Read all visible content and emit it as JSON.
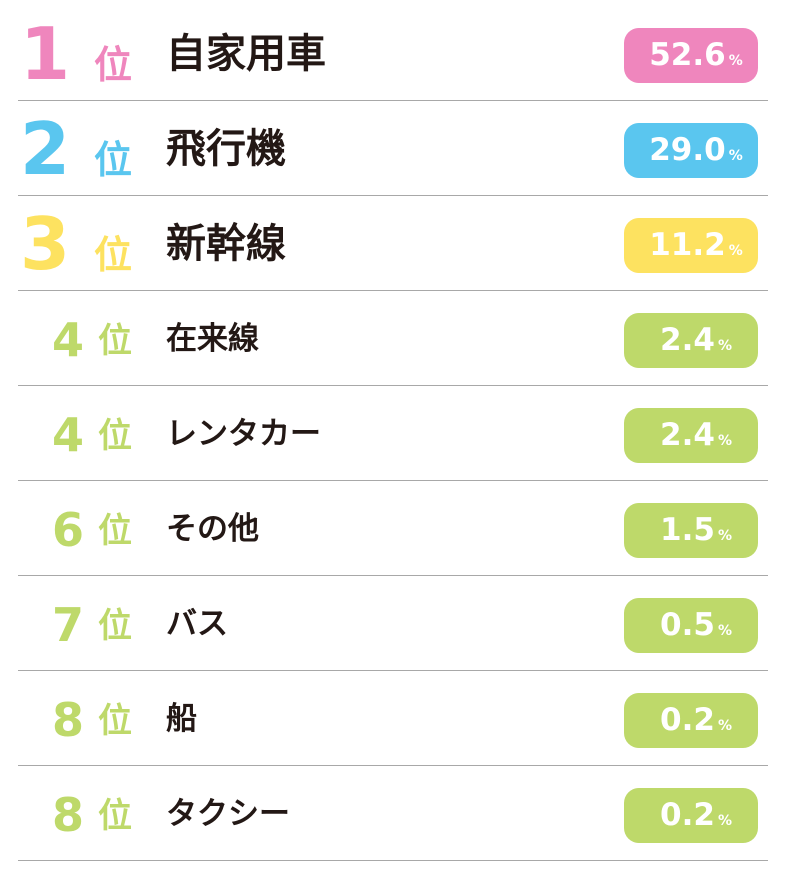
{
  "colors": {
    "rank1": "#ef86bd",
    "rank2": "#5ac6ef",
    "rank3": "#fde260",
    "rank_other": "#bed96a",
    "label_text": "#231815",
    "divider": "#a8a8a8"
  },
  "rank_suffix": "位",
  "percent_unit": "%",
  "chart_data": {
    "type": "table",
    "columns": [
      "rank",
      "mode",
      "percent"
    ],
    "rows": [
      {
        "rank": "1",
        "label": "自家用車",
        "value": 52.6,
        "value_text": "52.6"
      },
      {
        "rank": "2",
        "label": "飛行機",
        "value": 29.0,
        "value_text": "29.0"
      },
      {
        "rank": "3",
        "label": "新幹線",
        "value": 11.2,
        "value_text": "11.2"
      },
      {
        "rank": "4",
        "label": "在来線",
        "value": 2.4,
        "value_text": "2.4"
      },
      {
        "rank": "4",
        "label": "レンタカー",
        "value": 2.4,
        "value_text": "2.4"
      },
      {
        "rank": "6",
        "label": "その他",
        "value": 1.5,
        "value_text": "1.5"
      },
      {
        "rank": "7",
        "label": "バス",
        "value": 0.5,
        "value_text": "0.5"
      },
      {
        "rank": "8",
        "label": "船",
        "value": 0.2,
        "value_text": "0.2"
      },
      {
        "rank": "8",
        "label": "タクシー",
        "value": 0.2,
        "value_text": "0.2"
      }
    ]
  }
}
